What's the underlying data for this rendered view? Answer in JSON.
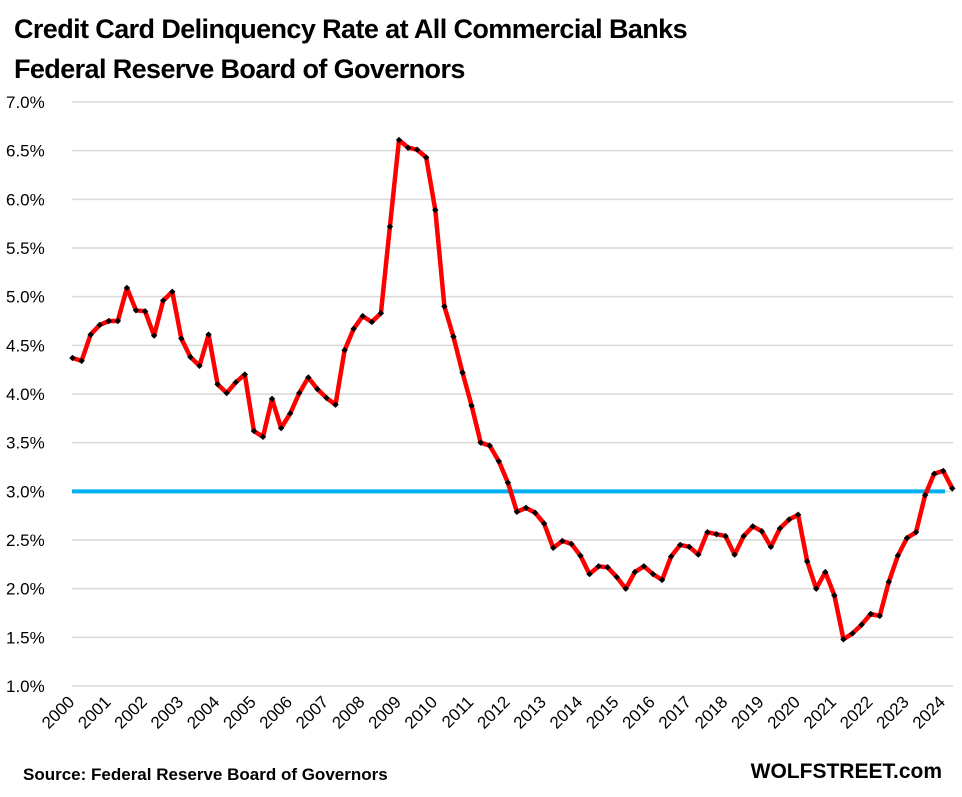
{
  "chart_data": {
    "type": "line",
    "title": "Credit Card Delinquency Rate at All Commercial Banks",
    "subtitle": "Federal Reserve Board of Governors",
    "xlabel": "",
    "ylabel": "",
    "ylim": [
      1.0,
      7.0
    ],
    "y_unit": "%",
    "grid": true,
    "legend": "none",
    "y_ticks": [
      "1.0%",
      "1.5%",
      "2.0%",
      "2.5%",
      "3.0%",
      "3.5%",
      "4.0%",
      "4.5%",
      "5.0%",
      "5.5%",
      "6.0%",
      "6.5%",
      "7.0%"
    ],
    "y_tick_values": [
      1.0,
      1.5,
      2.0,
      2.5,
      3.0,
      3.5,
      4.0,
      4.5,
      5.0,
      5.5,
      6.0,
      6.5,
      7.0
    ],
    "x_ticks": [
      "2000",
      "2001",
      "2002",
      "2003",
      "2004",
      "2005",
      "2006",
      "2007",
      "2008",
      "2009",
      "2010",
      "2011",
      "2012",
      "2013",
      "2014",
      "2015",
      "2016",
      "2017",
      "2018",
      "2019",
      "2020",
      "2021",
      "2022",
      "2023",
      "2024"
    ],
    "x_frequency": "quarterly",
    "x_start": "2000 Q1",
    "x_end": "2024 Q2",
    "series": [
      {
        "name": "Credit card delinquency rate",
        "color": "#FF0000",
        "marker_color": "#000000",
        "values": [
          4.37,
          4.34,
          4.61,
          4.71,
          4.75,
          4.75,
          5.09,
          4.86,
          4.85,
          4.6,
          4.96,
          5.05,
          4.57,
          4.38,
          4.29,
          4.61,
          4.1,
          4.01,
          4.12,
          4.2,
          3.62,
          3.56,
          3.95,
          3.65,
          3.8,
          4.01,
          4.17,
          4.05,
          3.96,
          3.89,
          4.45,
          4.67,
          4.8,
          4.74,
          4.83,
          5.72,
          6.61,
          6.53,
          6.51,
          6.43,
          5.89,
          4.9,
          4.59,
          4.22,
          3.88,
          3.5,
          3.47,
          3.31,
          3.09,
          2.79,
          2.83,
          2.78,
          2.67,
          2.42,
          2.49,
          2.46,
          2.34,
          2.15,
          2.23,
          2.22,
          2.12,
          2.0,
          2.17,
          2.23,
          2.15,
          2.09,
          2.33,
          2.45,
          2.43,
          2.35,
          2.58,
          2.56,
          2.54,
          2.35,
          2.54,
          2.64,
          2.59,
          2.43,
          2.62,
          2.71,
          2.76,
          2.28,
          2.0,
          2.17,
          1.93,
          1.48,
          1.54,
          1.63,
          1.74,
          1.72,
          2.07,
          2.34,
          2.52,
          2.58,
          2.96,
          3.18,
          3.21,
          3.03
        ]
      }
    ],
    "reference_lines": [
      {
        "name": "3% reference line",
        "value": 3.0,
        "color": "#00B0F0"
      }
    ],
    "gridline_color": "#D9D9D9"
  },
  "footer": {
    "source": "Source: Federal Reserve Board of Governors",
    "brand": "WOLFSTREET.com"
  }
}
